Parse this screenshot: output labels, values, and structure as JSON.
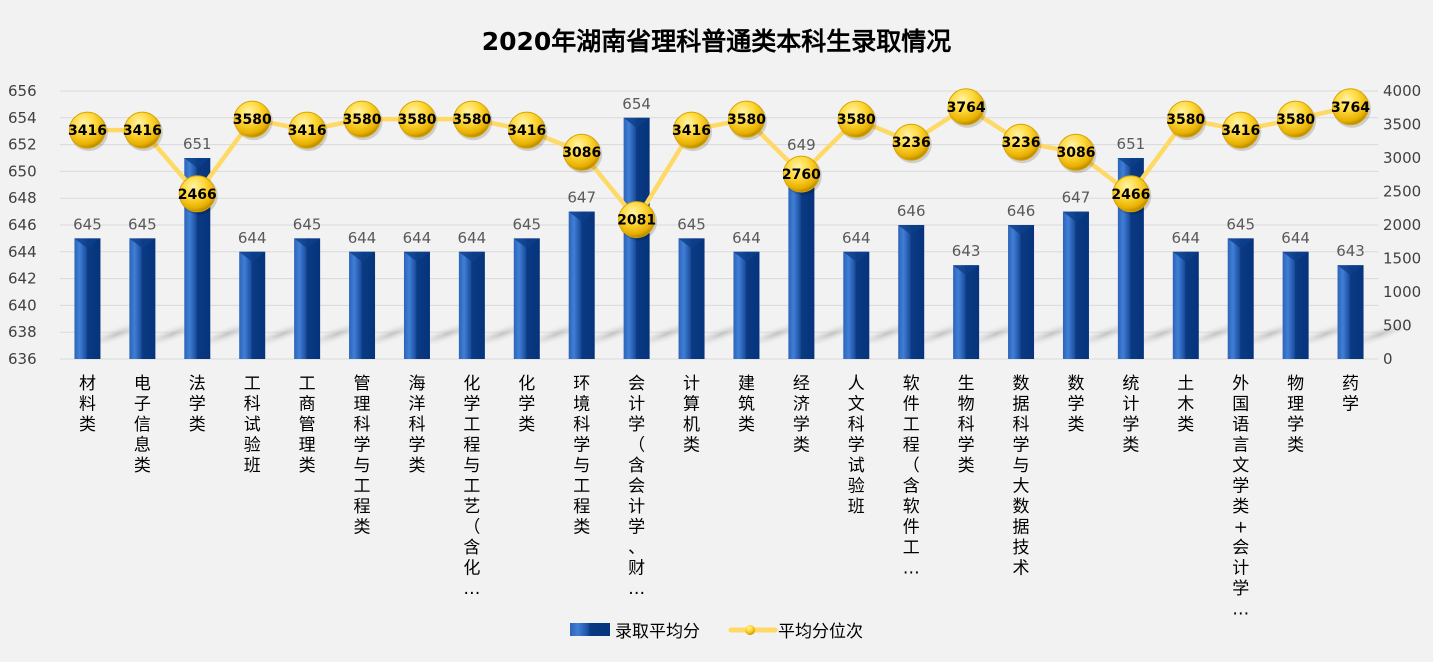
{
  "chart_data": {
    "type": "bar",
    "title": "2020年湖南省理科普通类本科生录取情况",
    "xlabel": "",
    "ylabel": "",
    "ylim": [
      636,
      656
    ],
    "y2lim": [
      0,
      4000
    ],
    "yticks": [
      636,
      638,
      640,
      642,
      644,
      646,
      648,
      650,
      652,
      654,
      656
    ],
    "y2ticks": [
      0,
      500,
      1000,
      1500,
      2000,
      2500,
      3000,
      3500,
      4000
    ],
    "grid": true,
    "legend_position": "bottom",
    "categories": [
      "材料类",
      "电子信息类",
      "法学类",
      "工科试验班",
      "工商管理类",
      "管理科学与工程类",
      "海洋科学类",
      "化学工程与工艺（含化…",
      "化学类",
      "环境科学与工程类",
      "会计学（含会计学、财…",
      "计算机类",
      "建筑类",
      "经济学类",
      "人文科学试验班",
      "软件工程（含软件工…",
      "生物科学类",
      "数据科学与大数据技术",
      "数学类",
      "统计学类",
      "土木类",
      "外国语言文学类+会计学…",
      "物理学类",
      "药学"
    ],
    "series": [
      {
        "name": "录取平均分",
        "type": "bar",
        "axis": "left",
        "color": "#1f4e9c",
        "values": [
          645,
          645,
          651,
          644,
          645,
          644,
          644,
          644,
          645,
          647,
          654,
          645,
          644,
          649,
          644,
          646,
          643,
          646,
          647,
          651,
          644,
          645,
          644,
          643
        ]
      },
      {
        "name": "平均分位次",
        "type": "line",
        "axis": "right",
        "color": "#ffd966",
        "values": [
          3416,
          3416,
          2466,
          3580,
          3416,
          3580,
          3580,
          3580,
          3416,
          3086,
          2081,
          3416,
          3580,
          2760,
          3580,
          3236,
          3764,
          3236,
          3086,
          2466,
          3580,
          3416,
          3580,
          3764
        ]
      }
    ]
  }
}
